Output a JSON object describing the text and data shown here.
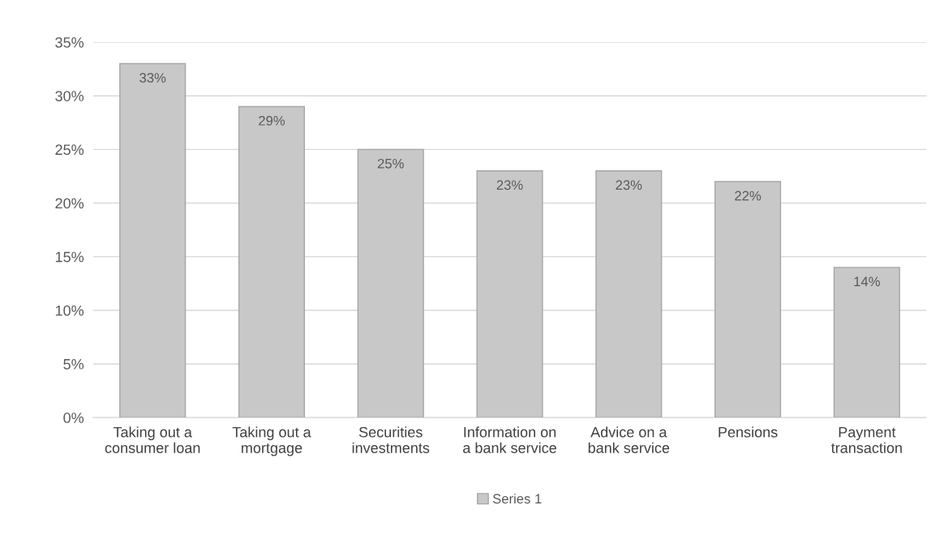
{
  "chart_data": {
    "type": "bar",
    "categories": [
      "Taking out a\nconsumer loan",
      "Taking out a\nmortgage",
      "Securities\ninvestments",
      "Information on\na bank service",
      "Advice on a\nbank service",
      "Pensions",
      "Payment\ntransaction"
    ],
    "series": [
      {
        "name": "Series 1",
        "color": "#c8c8c8",
        "values": [
          33,
          29,
          25,
          23,
          23,
          22,
          14
        ]
      }
    ],
    "value_labels": [
      "33%",
      "29%",
      "25%",
      "23%",
      "23%",
      "22%",
      "14%"
    ],
    "ylim": [
      0,
      35
    ],
    "yticks": [
      {
        "value": 0,
        "label": "0%"
      },
      {
        "value": 5,
        "label": "5%"
      },
      {
        "value": 10,
        "label": "10%"
      },
      {
        "value": 15,
        "label": "15%"
      },
      {
        "value": 20,
        "label": "20%"
      },
      {
        "value": 25,
        "label": "25%"
      },
      {
        "value": 30,
        "label": "30%"
      },
      {
        "value": 35,
        "label": "35%"
      }
    ],
    "grid": "y",
    "legend": "bottom"
  }
}
